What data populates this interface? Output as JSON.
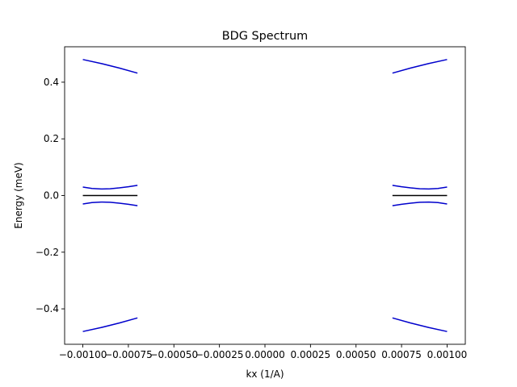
{
  "chart_data": {
    "type": "line",
    "title": "BDG Spectrum",
    "xlabel": "kx (1/A)",
    "ylabel": "Energy (meV)",
    "xlim": [
      -0.0011,
      0.0011
    ],
    "ylim": [
      -0.525,
      0.525
    ],
    "x_ticks": [
      -0.001,
      -0.00075,
      -0.0005,
      -0.00025,
      0.0,
      0.00025,
      0.0005,
      0.00075,
      0.001
    ],
    "x_tick_labels": [
      "−0.00100",
      "−0.00075",
      "−0.00050",
      "−0.00025",
      "0.00000",
      "0.00025",
      "0.00050",
      "0.00075",
      "0.00100"
    ],
    "y_ticks": [
      -0.4,
      -0.2,
      0.0,
      0.2,
      0.4
    ],
    "y_tick_labels": [
      "−0.4",
      "−0.2",
      "0.0",
      "0.2",
      "0.4"
    ],
    "grid": false,
    "legend": "none",
    "series": [
      {
        "color": "#0000cc",
        "x": [
          -0.001,
          -0.0009,
          -0.0008,
          -0.0007
        ],
        "y": [
          0.48,
          0.466,
          0.45,
          0.432
        ]
      },
      {
        "color": "#0000cc",
        "x": [
          -0.001,
          -0.0009,
          -0.0008,
          -0.0007
        ],
        "y": [
          -0.48,
          -0.466,
          -0.45,
          -0.432
        ]
      },
      {
        "color": "#0000cc",
        "x": [
          -0.001,
          -0.00095,
          -0.0009,
          -0.00085,
          -0.0008,
          -0.00075,
          -0.0007
        ],
        "y": [
          0.03,
          0.025,
          0.023,
          0.024,
          0.027,
          0.031,
          0.036
        ]
      },
      {
        "color": "#0000cc",
        "x": [
          -0.001,
          -0.00095,
          -0.0009,
          -0.00085,
          -0.0008,
          -0.00075,
          -0.0007
        ],
        "y": [
          -0.03,
          -0.025,
          -0.023,
          -0.024,
          -0.027,
          -0.031,
          -0.036
        ]
      },
      {
        "color": "#000000",
        "x": [
          -0.001,
          -0.0007
        ],
        "y": [
          0.0,
          0.0
        ]
      },
      {
        "color": "#0000cc",
        "x": [
          0.0007,
          0.0008,
          0.0009,
          0.001
        ],
        "y": [
          0.432,
          0.45,
          0.466,
          0.48
        ]
      },
      {
        "color": "#0000cc",
        "x": [
          0.0007,
          0.0008,
          0.0009,
          0.001
        ],
        "y": [
          -0.432,
          -0.45,
          -0.466,
          -0.48
        ]
      },
      {
        "color": "#0000cc",
        "x": [
          0.0007,
          0.00075,
          0.0008,
          0.00085,
          0.0009,
          0.00095,
          0.001
        ],
        "y": [
          0.036,
          0.031,
          0.027,
          0.024,
          0.023,
          0.025,
          0.03
        ]
      },
      {
        "color": "#0000cc",
        "x": [
          0.0007,
          0.00075,
          0.0008,
          0.00085,
          0.0009,
          0.00095,
          0.001
        ],
        "y": [
          -0.036,
          -0.031,
          -0.027,
          -0.024,
          -0.023,
          -0.025,
          -0.03
        ]
      },
      {
        "color": "#000000",
        "x": [
          0.0007,
          0.001
        ],
        "y": [
          0.0,
          0.0
        ]
      }
    ]
  }
}
